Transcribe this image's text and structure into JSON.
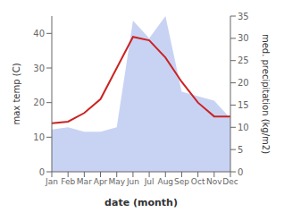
{
  "chart_data": {
    "type": "line",
    "xlabel": "date (month)",
    "ylabel": "max temp (C)",
    "y2label": "med. precipitation (kg/m2)",
    "categories": [
      "Jan",
      "Feb",
      "Mar",
      "Apr",
      "May",
      "Jun",
      "Jul",
      "Aug",
      "Sep",
      "Oct",
      "Nov",
      "Dec"
    ],
    "series": [
      {
        "type": "line",
        "color": "#cc2222",
        "values": [
          14,
          14.5,
          17,
          21,
          30,
          39,
          38,
          33,
          26,
          20,
          16,
          16
        ]
      },
      {
        "type": "area",
        "axis": "y2",
        "color": "#aabbee",
        "values": [
          9.5,
          10,
          9,
          9,
          10,
          34,
          30,
          35,
          18,
          17,
          16,
          12
        ]
      }
    ],
    "ylim": [
      0,
      45
    ],
    "yticks": [
      0,
      10,
      20,
      30,
      40
    ],
    "y2lim": [
      0,
      35
    ],
    "y2ticks": [
      0,
      5,
      10,
      15,
      20,
      25,
      30,
      35
    ],
    "grid": false
  }
}
